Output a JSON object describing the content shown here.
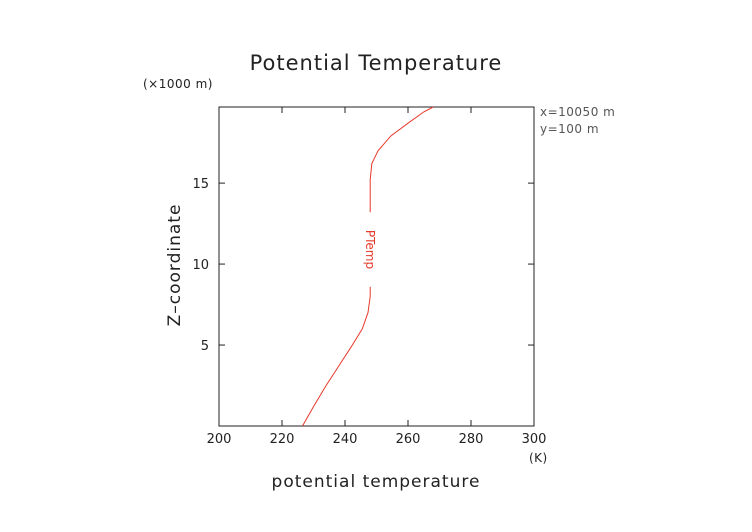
{
  "chart_data": {
    "type": "line",
    "title": "Potential Temperature",
    "xlabel": "potential temperature",
    "ylabel": "Z–coordinate",
    "x_unit": "(K)",
    "y_unit": "(×1000 m)",
    "xlim": [
      200,
      300
    ],
    "ylim": [
      0,
      19.7
    ],
    "xticks": [
      200,
      220,
      240,
      260,
      280,
      300
    ],
    "yticks": [
      5,
      10,
      15
    ],
    "grid": false,
    "annotations": [
      "x=10050 m",
      "y=100 m"
    ],
    "series": [
      {
        "name": "PTemp",
        "color": "#e8392b",
        "x": [
          226.5,
          230.0,
          234.0,
          238.0,
          242.0,
          245.5,
          247.3,
          248.0,
          248.0,
          248.0,
          248.0,
          248.5,
          250.5,
          254.5,
          260.0,
          265.0,
          268.0
        ],
        "y": [
          0.0,
          1.2,
          2.5,
          3.7,
          4.9,
          6.0,
          7.0,
          8.0,
          10.0,
          13.0,
          15.2,
          16.2,
          17.0,
          17.9,
          18.7,
          19.4,
          19.7
        ]
      }
    ]
  }
}
